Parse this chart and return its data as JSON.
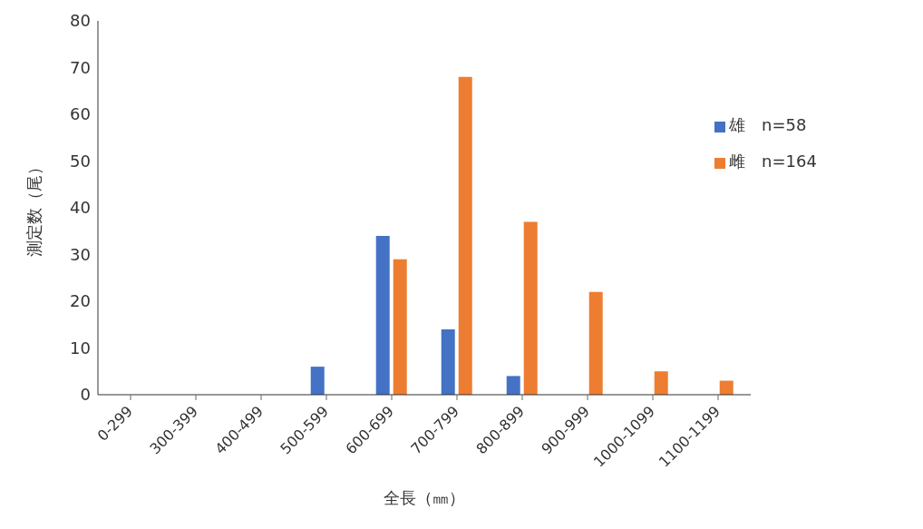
{
  "chart_data": {
    "type": "bar",
    "xlabel": "全長（㎜）",
    "ylabel": "測定数（尾）",
    "categories": [
      "0-299",
      "300-399",
      "400-499",
      "500-599",
      "600-699",
      "700-799",
      "800-899",
      "900-999",
      "1000-1099",
      "1100-1199"
    ],
    "series": [
      {
        "name": "雄　n=58",
        "color": "#4472c4",
        "values": [
          0,
          0,
          0,
          6,
          34,
          14,
          4,
          0,
          0,
          0
        ]
      },
      {
        "name": "雌　n=164",
        "color": "#ed7d31",
        "values": [
          0,
          0,
          0,
          0,
          29,
          68,
          37,
          22,
          5,
          3
        ]
      }
    ],
    "ylim": [
      0,
      80
    ],
    "yticks": [
      0,
      10,
      20,
      30,
      40,
      50,
      60,
      70,
      80
    ],
    "grid": false,
    "legend": "top right"
  }
}
